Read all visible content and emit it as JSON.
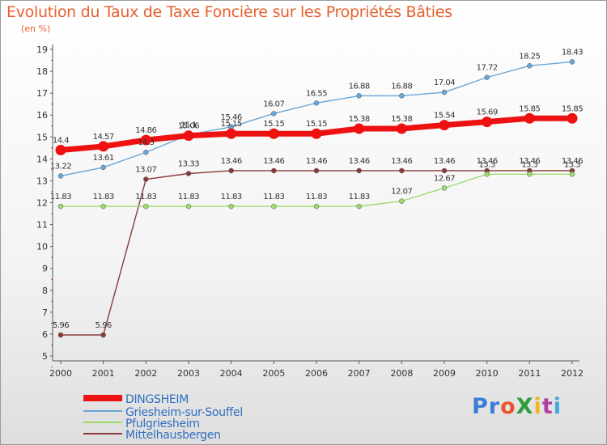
{
  "chart_data": {
    "type": "line",
    "title": "Evolution du Taux de Taxe Foncière sur les Propriétés Bâties",
    "ylabel": "(en %)",
    "xlabel": "",
    "x": [
      "2000",
      "2001",
      "2002",
      "2003",
      "2004",
      "2005",
      "2006",
      "2007",
      "2008",
      "2009",
      "2010",
      "2011",
      "2012"
    ],
    "yticks": [
      "5",
      "6",
      "7",
      "8",
      "9",
      "10",
      "11",
      "12",
      "13",
      "14",
      "15",
      "16",
      "17",
      "18",
      "19"
    ],
    "ylim": [
      5,
      19
    ],
    "grid": false,
    "legend_position": "bottom-left",
    "series": [
      {
        "name": "DINGSHEIM",
        "color": "#ee1111",
        "values": [
          14.4,
          14.57,
          14.86,
          15.06,
          15.15,
          15.15,
          15.15,
          15.38,
          15.38,
          15.54,
          15.69,
          15.85,
          15.85
        ],
        "labels": [
          "14.4",
          "14.57",
          "14.86",
          "15.06",
          "15.15",
          "15.15",
          "15.15",
          "15.38",
          "15.38",
          "15.54",
          "15.69",
          "15.85",
          "15.85"
        ]
      },
      {
        "name": "Griesheim-sur-Souffel",
        "color": "#6aa6d6",
        "values": [
          13.22,
          13.61,
          14.3,
          15.1,
          15.46,
          16.07,
          16.55,
          16.88,
          16.88,
          17.04,
          17.72,
          18.25,
          18.43
        ],
        "labels": [
          "13.22",
          "13.61",
          "14.3",
          "15.1",
          "15.46",
          "16.07",
          "16.55",
          "16.88",
          "16.88",
          "17.04",
          "17.72",
          "18.25",
          "18.43"
        ]
      },
      {
        "name": "Pfulgriesheim",
        "color": "#9edb6e",
        "values": [
          11.83,
          11.83,
          11.83,
          11.83,
          11.83,
          11.83,
          11.83,
          11.83,
          12.07,
          12.67,
          13.3,
          13.3,
          13.3
        ],
        "labels": [
          "11.83",
          "11.83",
          "11.83",
          "11.83",
          "11.83",
          "11.83",
          "11.83",
          "11.83",
          "12.07",
          "12.67",
          "13.3",
          "13.3",
          "13.3"
        ]
      },
      {
        "name": "Mittelhausbergen",
        "color": "#8b3a3a",
        "values": [
          5.96,
          5.96,
          13.07,
          13.33,
          13.46,
          13.46,
          13.46,
          13.46,
          13.46,
          13.46,
          13.46,
          13.46,
          13.46
        ],
        "labels": [
          "5.96",
          "5.96",
          "13.07",
          "13.33",
          "13.46",
          "13.46",
          "13.46",
          "13.46",
          "13.46",
          "13.46",
          "13.46",
          "13.46",
          "13.46"
        ]
      }
    ]
  },
  "branding": {
    "logo_text": [
      "Pr",
      "o",
      "X",
      "i",
      "t",
      "i"
    ]
  }
}
